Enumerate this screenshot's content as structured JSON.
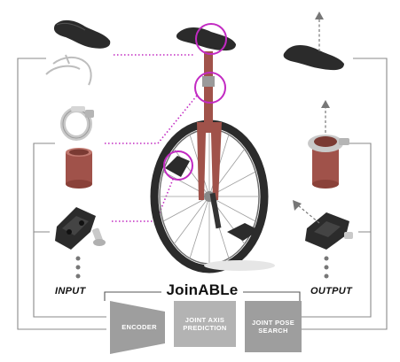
{
  "labels": {
    "input": "INPUT",
    "output": "OUTPUT",
    "title": "JoinABLe"
  },
  "modules": [
    {
      "name": "encoder",
      "text": "ENCODER"
    },
    {
      "name": "joint-axis-prediction",
      "text": "JOINT AXIS\nPREDICTION"
    },
    {
      "name": "joint-pose-search",
      "text": "JOINT POSE\nSEARCH"
    }
  ],
  "colors": {
    "line": "#8a8a8a",
    "highlight": "#c22ac2",
    "part_dark": "#2b2b2b",
    "part_red": "#a0524a",
    "part_metal": "#c9c9c9",
    "box_gray": "#9e9e9e",
    "box_gray_light": "#b3b3b3"
  }
}
